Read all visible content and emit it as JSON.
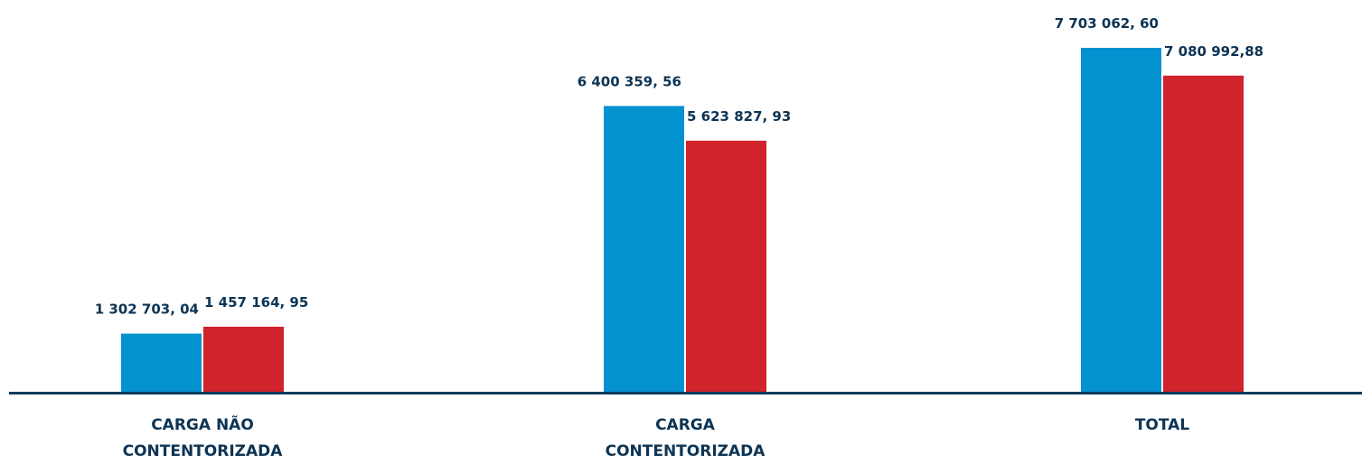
{
  "chart_data": {
    "type": "bar",
    "categories": [
      "CARGA NÃO\nCONTENTORIZADA",
      "CARGA\nCONTENTORIZADA",
      "TOTAL"
    ],
    "series": [
      {
        "color": "#0391cf",
        "values": [
          1302703.04,
          6400359.56,
          7703062.6
        ],
        "value_labels": [
          "1 302 703, 04",
          "6 400 359, 56",
          "7 703 062, 60"
        ]
      },
      {
        "color": "#d0232b",
        "values": [
          1457164.95,
          5623827.93,
          7080992.88
        ],
        "value_labels": [
          "1 457 164, 95",
          "5 623 827, 93",
          "7 080 992,88"
        ]
      }
    ]
  }
}
